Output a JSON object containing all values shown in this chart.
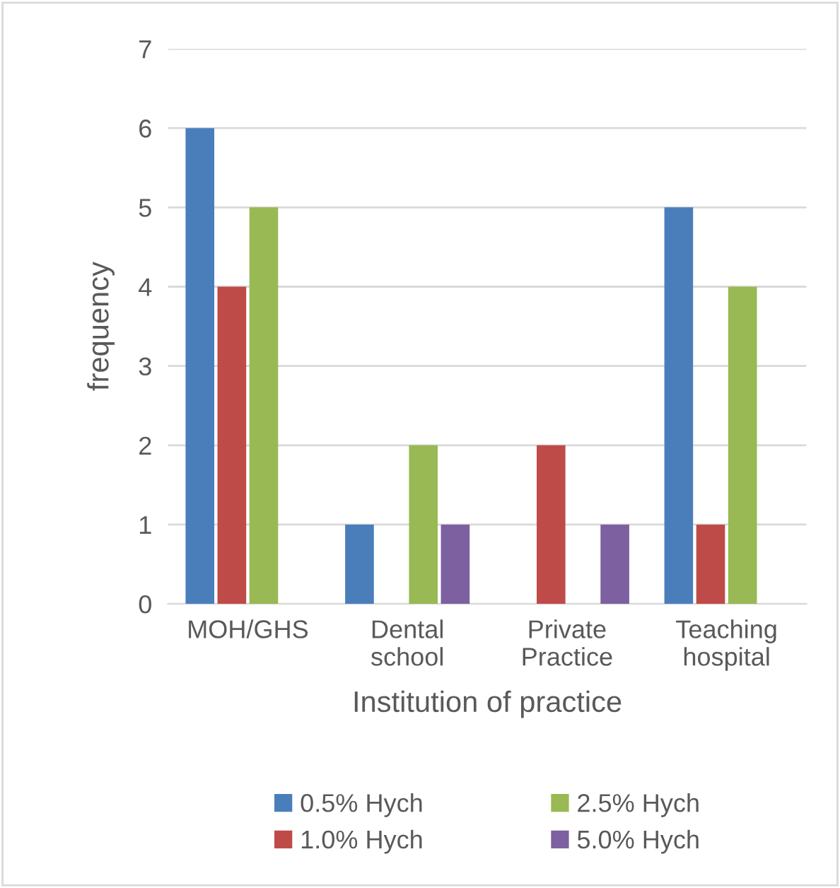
{
  "chart_data": {
    "type": "bar",
    "xlabel": "Institution of practice",
    "ylabel": "frequency",
    "categories": [
      "MOH/GHS",
      "Dental school",
      "Private Practice",
      "Teaching hospital"
    ],
    "series": [
      {
        "name": "0.5% Hych",
        "color": "#4a7ebb",
        "values": [
          6,
          1,
          0,
          5
        ]
      },
      {
        "name": "1.0% Hych",
        "color": "#be4b48",
        "values": [
          4,
          0,
          2,
          1
        ]
      },
      {
        "name": "2.5% Hych",
        "color": "#98b954",
        "values": [
          5,
          2,
          0,
          4
        ]
      },
      {
        "name": "5.0% Hych",
        "color": "#7d60a0",
        "values": [
          0,
          1,
          1,
          0
        ]
      }
    ],
    "ylim": [
      0,
      7
    ],
    "yticks": [
      0,
      1,
      2,
      3,
      4,
      5,
      6,
      7
    ],
    "grid": "y",
    "legend": "bottom"
  }
}
